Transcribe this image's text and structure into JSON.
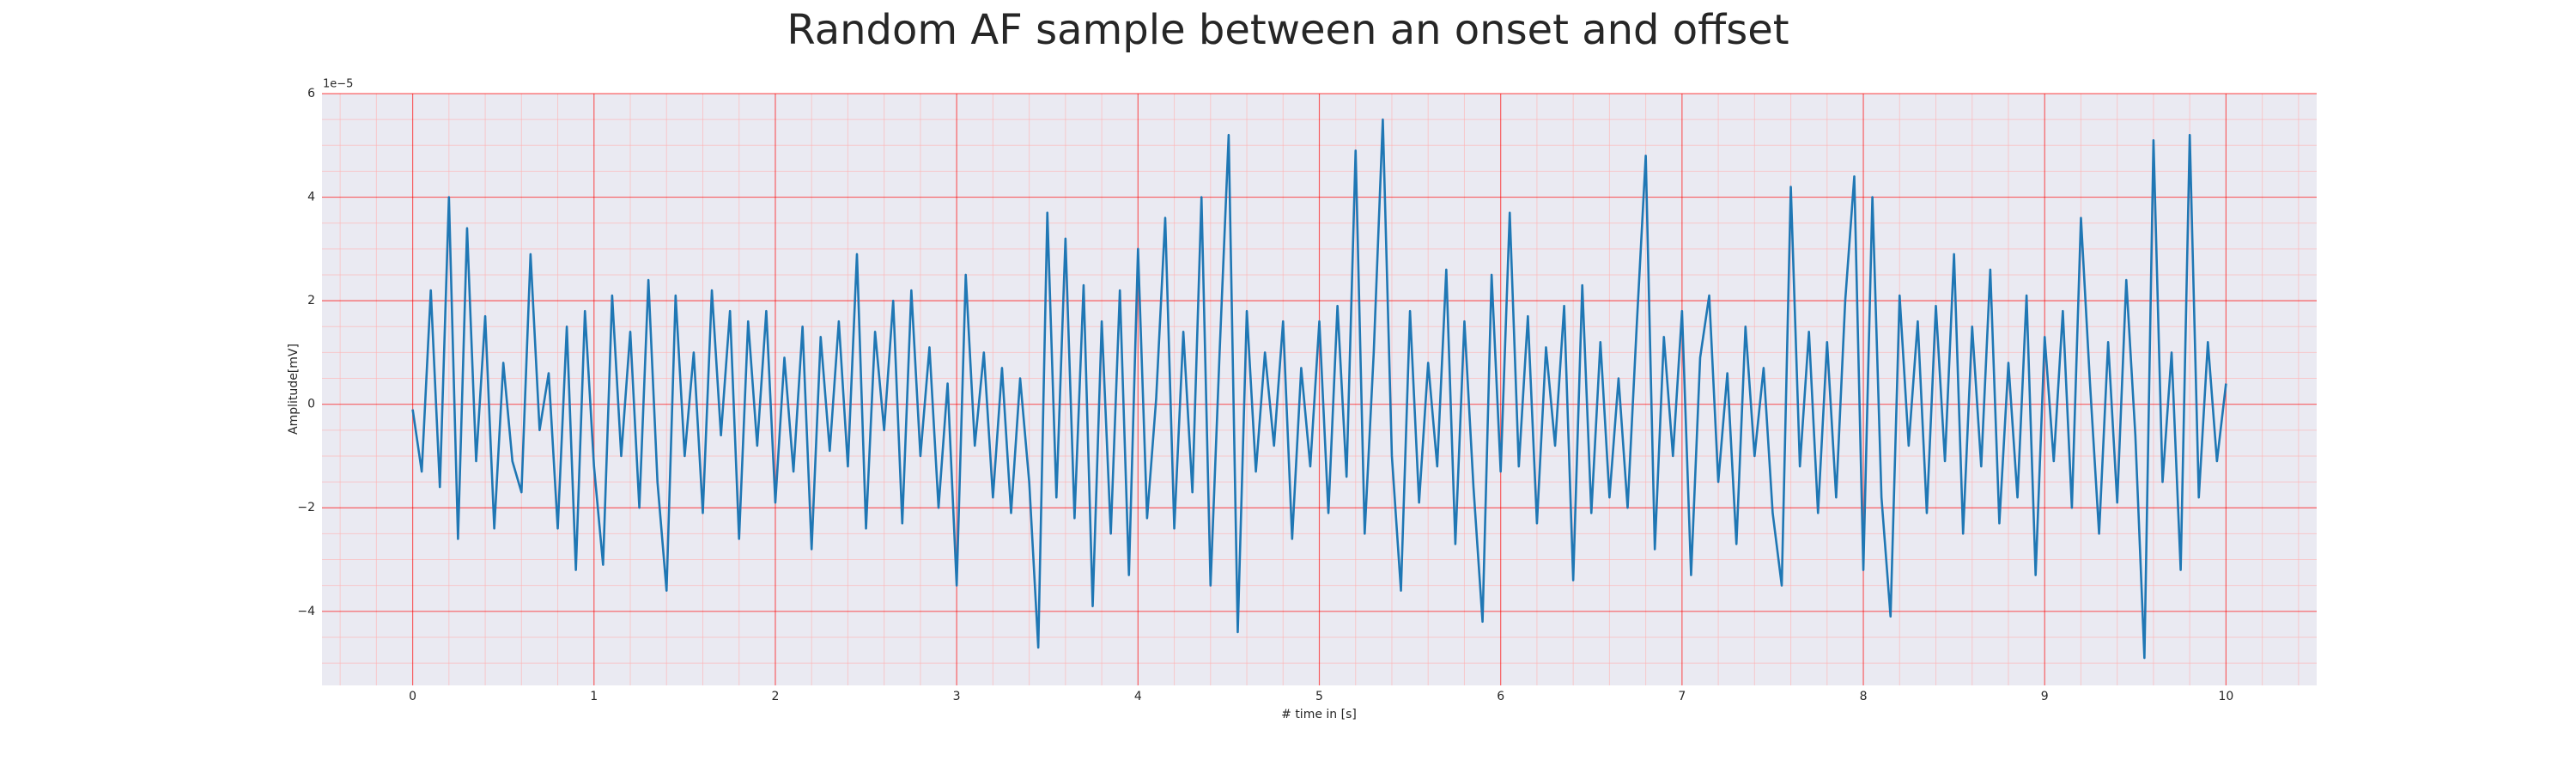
{
  "chart_data": {
    "type": "line",
    "title": "Random AF sample between an onset and offset",
    "xlabel": "# time in [s]",
    "ylabel": "Amplitude[mV]",
    "y_offset_label": "1e−5",
    "color": "#1f77b4",
    "grid": true,
    "grid_color": "#ff0000",
    "minor_grid_color": "#ffb0b0",
    "background": "#eaeaf2",
    "xlim": [
      -0.5,
      10.5
    ],
    "ylim": [
      -5.43,
      6
    ],
    "xticks": [
      0,
      1,
      2,
      3,
      4,
      5,
      6,
      7,
      8,
      9,
      10
    ],
    "yticks": [
      {
        "value": -4,
        "label": "−4"
      },
      {
        "value": -2,
        "label": "−2"
      },
      0,
      2,
      4,
      6
    ],
    "xminorticks": [
      -0.4,
      -0.2,
      0.2,
      0.4,
      0.6,
      0.8,
      1.2,
      1.4,
      1.6,
      1.8,
      2.2,
      2.4,
      2.6,
      2.8,
      3.2,
      3.4,
      3.6,
      3.8,
      4.2,
      4.4,
      4.6,
      4.8,
      5.2,
      5.4,
      5.6,
      5.8,
      6.2,
      6.4,
      6.6,
      6.8,
      7.2,
      7.4,
      7.6,
      7.8,
      8.2,
      8.4,
      8.6,
      8.8,
      9.2,
      9.4,
      9.6,
      9.8,
      10.2,
      10.4
    ],
    "yminorticks": [
      -5,
      -4.5,
      -3.5,
      -3,
      -2.5,
      -1.5,
      -1,
      -0.5,
      0.5,
      1,
      1.5,
      2.5,
      3,
      3.5,
      4.5,
      5,
      5.5
    ],
    "x": [
      0,
      0.05,
      0.1,
      0.15,
      0.2,
      0.25,
      0.3,
      0.35,
      0.4,
      0.45,
      0.5,
      0.55,
      0.6,
      0.65,
      0.7,
      0.75,
      0.8,
      0.85,
      0.9,
      0.95,
      1,
      1.05,
      1.1,
      1.15,
      1.2,
      1.25,
      1.3,
      1.35,
      1.4,
      1.45,
      1.5,
      1.55,
      1.6,
      1.65,
      1.7,
      1.75,
      1.8,
      1.85,
      1.9,
      1.95,
      2,
      2.05,
      2.1,
      2.15,
      2.2,
      2.25,
      2.3,
      2.35,
      2.4,
      2.45,
      2.5,
      2.55,
      2.6,
      2.65,
      2.7,
      2.75,
      2.8,
      2.85,
      2.9,
      2.95,
      3,
      3.05,
      3.1,
      3.15,
      3.2,
      3.25,
      3.3,
      3.35,
      3.4,
      3.45,
      3.5,
      3.55,
      3.6,
      3.65,
      3.7,
      3.75,
      3.8,
      3.85,
      3.9,
      3.95,
      4,
      4.05,
      4.1,
      4.15,
      4.2,
      4.25,
      4.3,
      4.35,
      4.4,
      4.45,
      4.5,
      4.55,
      4.6,
      4.65,
      4.7,
      4.75,
      4.8,
      4.85,
      4.9,
      4.95,
      5,
      5.05,
      5.1,
      5.15,
      5.2,
      5.25,
      5.3,
      5.35,
      5.4,
      5.45,
      5.5,
      5.55,
      5.6,
      5.65,
      5.7,
      5.75,
      5.8,
      5.85,
      5.9,
      5.95,
      6,
      6.05,
      6.1,
      6.15,
      6.2,
      6.25,
      6.3,
      6.35,
      6.4,
      6.45,
      6.5,
      6.55,
      6.6,
      6.65,
      6.7,
      6.75,
      6.8,
      6.85,
      6.9,
      6.95,
      7,
      7.05,
      7.1,
      7.15,
      7.2,
      7.25,
      7.3,
      7.35,
      7.4,
      7.45,
      7.5,
      7.55,
      7.6,
      7.65,
      7.7,
      7.75,
      7.8,
      7.85,
      7.9,
      7.95,
      8,
      8.05,
      8.1,
      8.15,
      8.2,
      8.25,
      8.3,
      8.35,
      8.4,
      8.45,
      8.5,
      8.55,
      8.6,
      8.65,
      8.7,
      8.75,
      8.8,
      8.85,
      8.9,
      8.95,
      9,
      9.05,
      9.1,
      9.15,
      9.2,
      9.25,
      9.3,
      9.35,
      9.4,
      9.45,
      9.5,
      9.55,
      9.6,
      9.65,
      9.7,
      9.75,
      9.8,
      9.85,
      9.9,
      9.95,
      10
    ],
    "values": [
      -0.1,
      -1.3,
      2.2,
      -1.6,
      4.0,
      -2.6,
      3.4,
      -1.1,
      1.7,
      -2.4,
      0.8,
      -1.1,
      -1.7,
      2.9,
      -0.5,
      0.6,
      -2.4,
      1.5,
      -3.2,
      1.8,
      -1.2,
      -3.1,
      2.1,
      -1.0,
      1.4,
      -2.0,
      2.4,
      -1.5,
      -3.6,
      2.1,
      -1.0,
      1.0,
      -2.1,
      2.2,
      -0.6,
      1.8,
      -2.6,
      1.6,
      -0.8,
      1.8,
      -1.9,
      0.9,
      -1.3,
      1.5,
      -2.8,
      1.3,
      -0.9,
      1.6,
      -1.2,
      2.9,
      -2.4,
      1.4,
      -0.5,
      2.0,
      -2.3,
      2.2,
      -1.0,
      1.1,
      -2.0,
      0.4,
      -3.5,
      2.5,
      -0.8,
      1.0,
      -1.8,
      0.7,
      -2.1,
      0.5,
      -1.5,
      -4.7,
      3.7,
      -1.8,
      3.2,
      -2.2,
      2.3,
      -3.9,
      1.6,
      -2.5,
      2.2,
      -3.3,
      3.0,
      -2.2,
      0.1,
      3.6,
      -2.4,
      1.4,
      -1.7,
      4.0,
      -3.5,
      1.0,
      5.2,
      -4.4,
      1.8,
      -1.3,
      1.0,
      -0.8,
      1.6,
      -2.6,
      0.7,
      -1.2,
      1.6,
      -2.1,
      1.9,
      -1.4,
      4.9,
      -2.5,
      1.0,
      5.5,
      -1.0,
      -3.6,
      1.8,
      -1.9,
      0.8,
      -1.2,
      2.6,
      -2.7,
      1.6,
      -1.6,
      -4.2,
      2.5,
      -1.3,
      3.7,
      -1.2,
      1.7,
      -2.3,
      1.1,
      -0.8,
      1.9,
      -3.4,
      2.3,
      -2.1,
      1.2,
      -1.8,
      0.5,
      -2.0,
      1.5,
      4.8,
      -2.8,
      1.3,
      -1.0,
      1.8,
      -3.3,
      0.9,
      2.1,
      -1.5,
      0.6,
      -2.7,
      1.5,
      -1.0,
      0.7,
      -2.1,
      -3.5,
      4.2,
      -1.2,
      1.4,
      -2.1,
      1.2,
      -1.8,
      2.0,
      4.4,
      -3.2,
      4.0,
      -1.8,
      -4.1,
      2.1,
      -0.8,
      1.6,
      -2.1,
      1.9,
      -1.1,
      2.9,
      -2.5,
      1.5,
      -1.2,
      2.6,
      -2.3,
      0.8,
      -1.8,
      2.1,
      -3.3,
      1.3,
      -1.1,
      1.8,
      -2.0,
      3.6,
      0.4,
      -2.5,
      1.2,
      -1.9,
      2.4,
      -0.6,
      -4.9,
      5.1,
      -1.5,
      1.0,
      -3.2,
      5.2,
      -1.8,
      1.2,
      -1.1,
      0.4
    ]
  }
}
